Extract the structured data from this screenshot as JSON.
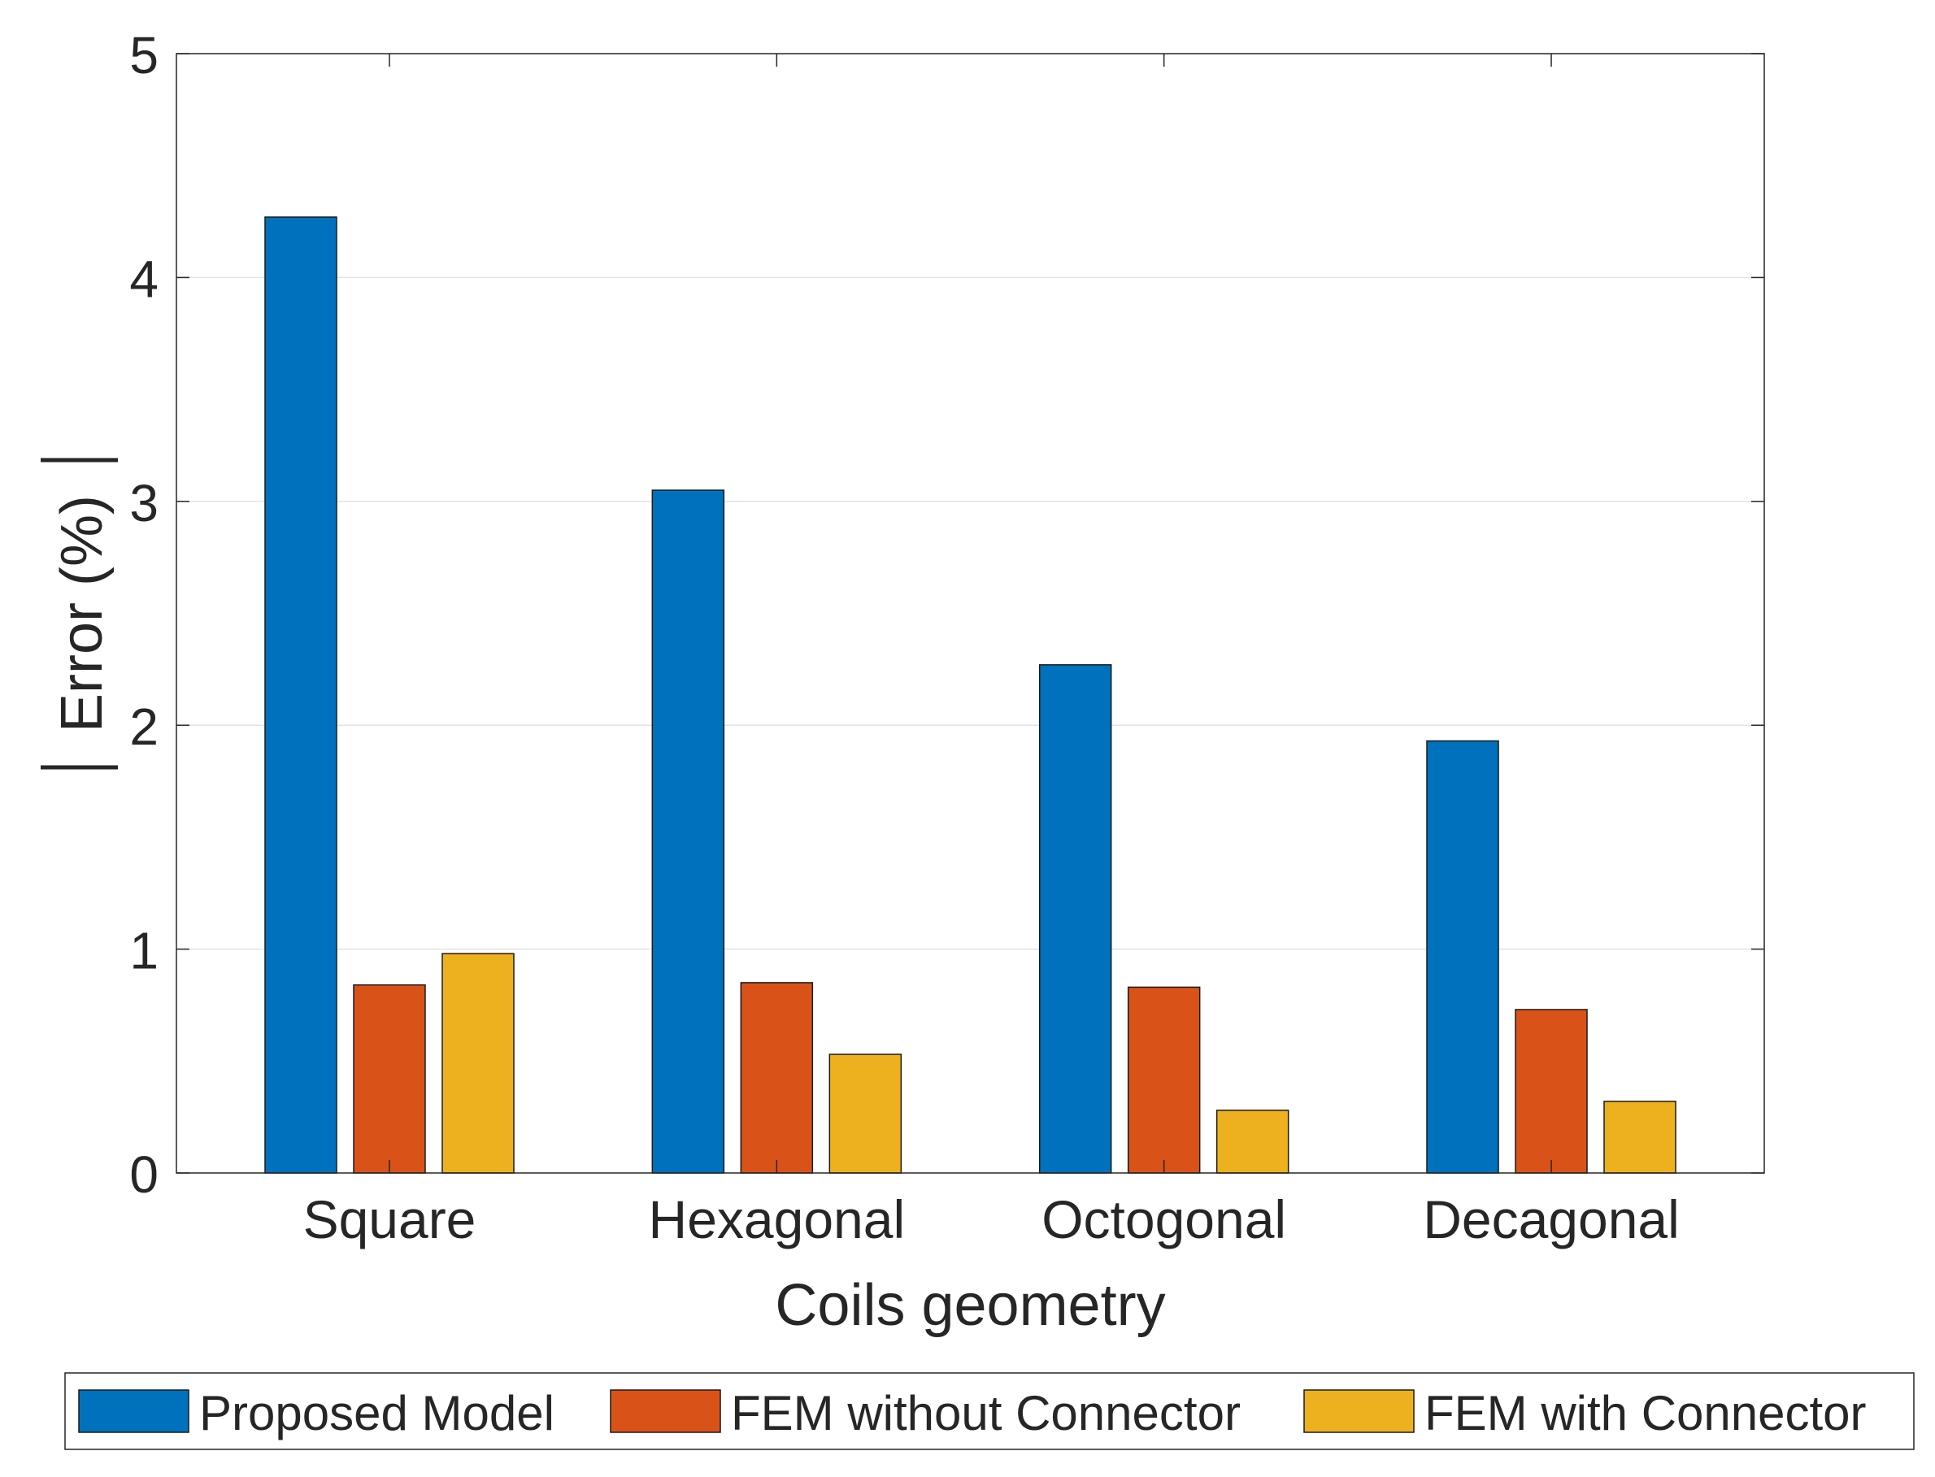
{
  "chart_data": {
    "type": "bar",
    "title": "",
    "xlabel": "Coils geometry",
    "ylabel": "|Error (%)|",
    "ylabel_text": "Error (%)",
    "categories": [
      "Square",
      "Hexagonal",
      "Octogonal",
      "Decagonal"
    ],
    "series": [
      {
        "name": "Proposed Model",
        "color": "#0072BD",
        "values": [
          4.27,
          3.05,
          2.27,
          1.93
        ]
      },
      {
        "name": "FEM without Connector",
        "color": "#D95319",
        "values": [
          0.84,
          0.85,
          0.83,
          0.73
        ]
      },
      {
        "name": "FEM with Connector",
        "color": "#EDB120",
        "values": [
          0.98,
          0.53,
          0.28,
          0.32
        ]
      }
    ],
    "ylim": [
      0,
      5
    ],
    "yticks": [
      "0",
      "1",
      "2",
      "3",
      "4",
      "5"
    ],
    "grid": true,
    "legend_position": "bottom"
  }
}
